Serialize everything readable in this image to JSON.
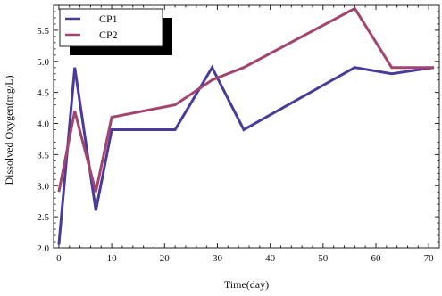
{
  "chart_data": {
    "type": "line",
    "title": "",
    "xlabel": "Time(day)",
    "ylabel": "Dissolved Oxygen(mg/L)",
    "xlim": [
      -1,
      72
    ],
    "ylim": [
      2.0,
      5.9
    ],
    "xticks": [
      "0",
      "10",
      "20",
      "30",
      "40",
      "50",
      "60",
      "70"
    ],
    "yticks": [
      "2.0",
      "2.5",
      "3.0",
      "3.5",
      "4.0",
      "4.5",
      "5.0",
      "5.5"
    ],
    "legend_position": "top-left",
    "series": [
      {
        "name": "CP1",
        "color": "#4a3a9a",
        "x": [
          0,
          3,
          7,
          10,
          22,
          29,
          35,
          56,
          63,
          71
        ],
        "y": [
          2.05,
          4.9,
          2.6,
          3.9,
          3.9,
          4.9,
          3.9,
          4.9,
          4.8,
          4.9
        ]
      },
      {
        "name": "CP2",
        "color": "#a3446f",
        "x": [
          0,
          3,
          7,
          10,
          22,
          29,
          35,
          56,
          63,
          71
        ],
        "y": [
          2.9,
          4.2,
          2.9,
          4.1,
          4.3,
          4.7,
          4.9,
          5.85,
          4.9,
          4.9
        ]
      }
    ]
  }
}
